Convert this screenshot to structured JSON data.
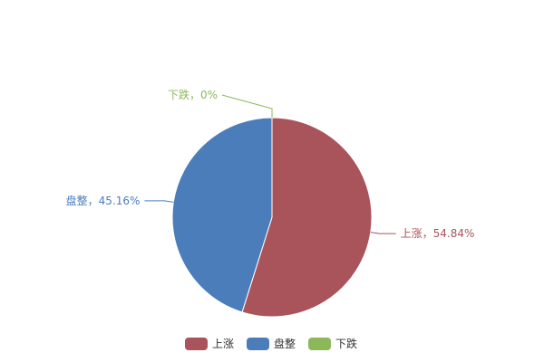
{
  "chart_data": {
    "type": "pie",
    "slices": [
      {
        "label": "上涨",
        "value": 54.84,
        "color": "#a9535a"
      },
      {
        "label": "盘整",
        "value": 45.16,
        "color": "#4b7dbb"
      },
      {
        "label": "下跌",
        "value": 0,
        "color": "#8db85a"
      }
    ],
    "data_labels": [
      "上涨，54.84%",
      "盘整，45.16%",
      "下跌，0%"
    ],
    "legend": [
      "上涨",
      "盘整",
      "下跌"
    ],
    "legend_position": "bottom-center"
  }
}
